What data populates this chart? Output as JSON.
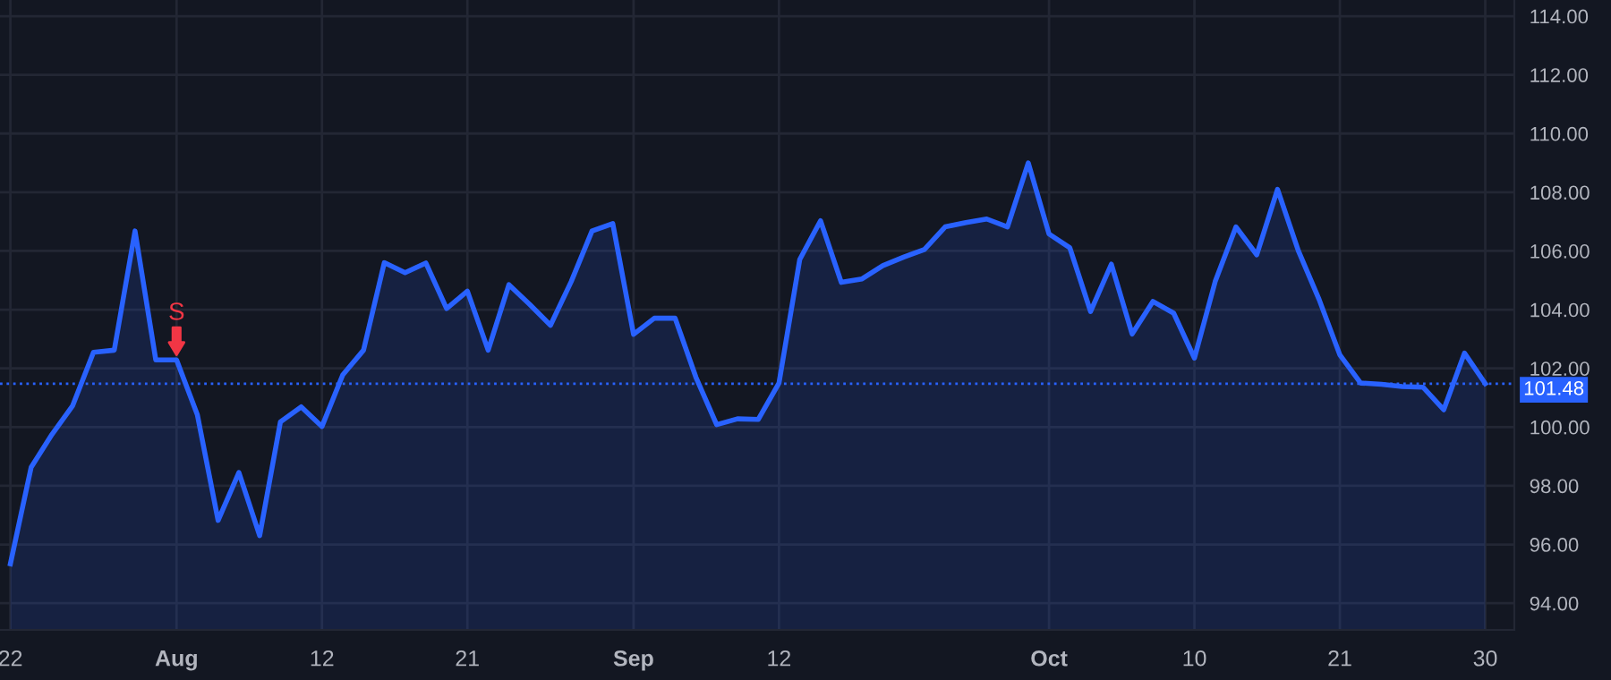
{
  "chart_data": {
    "type": "area",
    "categories": [
      "22",
      null,
      null,
      null,
      null,
      null,
      null,
      null,
      "Aug",
      null,
      null,
      null,
      null,
      null,
      null,
      "12",
      null,
      null,
      null,
      null,
      null,
      null,
      "21",
      null,
      null,
      null,
      null,
      null,
      null,
      null,
      "Sep",
      null,
      null,
      null,
      null,
      null,
      null,
      "12",
      null,
      null,
      null,
      null,
      null,
      null,
      null,
      null,
      null,
      null,
      null,
      null,
      "Oct",
      null,
      null,
      null,
      null,
      null,
      null,
      "10",
      null,
      null,
      null,
      null,
      null,
      null,
      "21",
      null,
      null,
      null,
      null,
      null,
      null,
      "30"
    ],
    "series": [
      {
        "color": "#2962ff",
        "values": [
          95.34,
          98.63,
          99.75,
          100.73,
          102.55,
          102.62,
          106.68,
          102.29,
          102.29,
          100.42,
          96.82,
          98.45,
          96.3,
          100.18,
          100.69,
          100.02,
          101.78,
          102.62,
          105.6,
          105.26,
          105.59,
          104.04,
          104.63,
          102.62,
          104.85,
          104.18,
          103.47,
          104.96,
          106.68,
          106.93,
          103.16,
          103.71,
          103.71,
          101.7,
          100.08,
          100.28,
          100.26,
          101.5,
          105.71,
          107.03,
          104.93,
          105.05,
          105.5,
          105.79,
          106.05,
          106.82,
          106.97,
          107.09,
          106.82,
          109.0,
          106.58,
          106.11,
          103.94,
          105.55,
          103.17,
          104.28,
          103.88,
          102.35,
          104.96,
          106.82,
          105.87,
          108.1,
          106.01,
          104.35,
          102.46,
          101.5,
          101.46,
          101.38,
          101.36,
          100.59,
          102.52,
          101.48
        ]
      }
    ],
    "ylim": [
      93.09,
      114.55
    ],
    "yticks": [
      {
        "value": 94,
        "label": "94.00"
      },
      {
        "value": 96,
        "label": "96.00"
      },
      {
        "value": 98,
        "label": "98.00"
      },
      {
        "value": 100,
        "label": "100.00"
      },
      {
        "value": 102,
        "label": "102.00"
      },
      {
        "value": 104,
        "label": "104.00"
      },
      {
        "value": 106,
        "label": "106.00"
      },
      {
        "value": 108,
        "label": "108.00"
      },
      {
        "value": 110,
        "label": "110.00"
      },
      {
        "value": 112,
        "label": "112.00"
      },
      {
        "value": 114,
        "label": "114.00"
      }
    ],
    "ref_lines": [
      {
        "axis": "y",
        "value": 101.48,
        "label": "101.48",
        "color": "#2962ff",
        "line_style": "dotted"
      }
    ],
    "annotations": [
      {
        "text": "S",
        "x": "Aug",
        "y": 102.29
      }
    ],
    "grid": true
  }
}
